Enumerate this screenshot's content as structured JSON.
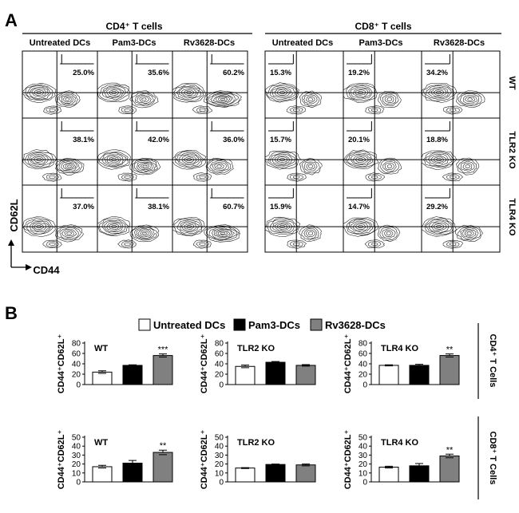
{
  "panel_a": {
    "label": "A",
    "groups": [
      {
        "title": "CD4⁺ T cells",
        "conditions": [
          "Untreated DCs",
          "Pam3-DCs",
          "Rv3628-DCs"
        ],
        "percents": [
          [
            "25.0%",
            "35.6%",
            "60.2%"
          ],
          [
            "38.1%",
            "42.0%",
            "36.0%"
          ],
          [
            "37.0%",
            "38.1%",
            "60.7%"
          ]
        ]
      },
      {
        "title": "CD8⁺ T cells",
        "conditions": [
          "Untreated DCs",
          "Pam3-DCs",
          "Rv3628-DCs"
        ],
        "percents": [
          [
            "15.3%",
            "19.2%",
            "34.2%"
          ],
          [
            "15.7%",
            "20.1%",
            "18.8%"
          ],
          [
            "15.9%",
            "14.7%",
            "29.2%"
          ]
        ]
      }
    ],
    "row_labels": [
      "WT",
      "TLR2 KO",
      "TLR4 KO"
    ],
    "y_axis_label": "CD62L",
    "x_axis_label": "CD44"
  },
  "panel_b": {
    "label": "B",
    "legend": [
      "Untreated DCs",
      "Pam3-DCs",
      "Rv3628-DCs"
    ],
    "row_labels": [
      "CD4⁺ T Cells",
      "CD8⁺ T Cells"
    ],
    "y_axis_label": "CD44⁺CD62L⁺"
  },
  "colors": {
    "untreated": "#ffffff",
    "pam3": "#000000",
    "rv3628": "#808080",
    "stroke": "#000000"
  },
  "chart_data": [
    {
      "type": "bar",
      "title": "WT",
      "cell_type": "CD4⁺ T Cells",
      "categories": [
        "Untreated DCs",
        "Pam3-DCs",
        "Rv3628-DCs"
      ],
      "values": [
        24,
        37,
        56
      ],
      "errors": [
        2.5,
        1,
        3
      ],
      "significance": [
        "",
        "",
        "***"
      ],
      "ylabel": "CD44⁺CD62L⁺",
      "ylim": [
        0,
        80
      ],
      "yticks": [
        0,
        20,
        40,
        60,
        80
      ]
    },
    {
      "type": "bar",
      "title": "TLR2 KO",
      "cell_type": "CD4⁺ T Cells",
      "categories": [
        "Untreated DCs",
        "Pam3-DCs",
        "Rv3628-DCs"
      ],
      "values": [
        35,
        43,
        37
      ],
      "errors": [
        2.5,
        1.5,
        1.5
      ],
      "significance": [
        "",
        "",
        ""
      ],
      "ylabel": "CD44⁺CD62L⁺",
      "ylim": [
        0,
        80
      ],
      "yticks": [
        0,
        20,
        40,
        60,
        80
      ]
    },
    {
      "type": "bar",
      "title": "TLR4 KO",
      "cell_type": "CD4⁺ T Cells",
      "categories": [
        "Untreated DCs",
        "Pam3-DCs",
        "Rv3628-DCs"
      ],
      "values": [
        37,
        37,
        56
      ],
      "errors": [
        1,
        2,
        3
      ],
      "significance": [
        "",
        "",
        "**"
      ],
      "ylabel": "CD44⁺CD62L⁺",
      "ylim": [
        0,
        80
      ],
      "yticks": [
        0,
        20,
        40,
        60,
        80
      ]
    },
    {
      "type": "bar",
      "title": "WT",
      "cell_type": "CD8⁺ T Cells",
      "categories": [
        "Untreated DCs",
        "Pam3-DCs",
        "Rv3628-DCs"
      ],
      "values": [
        17,
        21,
        33
      ],
      "errors": [
        1.5,
        3,
        2.5
      ],
      "significance": [
        "",
        "",
        "**"
      ],
      "ylabel": "CD44⁺CD62L⁺",
      "ylim": [
        0,
        50
      ],
      "yticks": [
        0,
        10,
        20,
        30,
        40,
        50
      ]
    },
    {
      "type": "bar",
      "title": "TLR2 KO",
      "cell_type": "CD8⁺ T Cells",
      "categories": [
        "Untreated DCs",
        "Pam3-DCs",
        "Rv3628-DCs"
      ],
      "values": [
        15.5,
        19.5,
        19
      ],
      "errors": [
        0.5,
        0.5,
        1
      ],
      "significance": [
        "",
        "",
        ""
      ],
      "ylabel": "CD44⁺CD62L⁺",
      "ylim": [
        0,
        50
      ],
      "yticks": [
        0,
        10,
        20,
        30,
        40,
        50
      ]
    },
    {
      "type": "bar",
      "title": "TLR4 KO",
      "cell_type": "CD8⁺ T Cells",
      "categories": [
        "Untreated DCs",
        "Pam3-DCs",
        "Rv3628-DCs"
      ],
      "values": [
        16.5,
        18,
        29
      ],
      "errors": [
        1,
        2.5,
        2
      ],
      "significance": [
        "",
        "",
        "**"
      ],
      "ylabel": "CD44⁺CD62L⁺",
      "ylim": [
        0,
        50
      ],
      "yticks": [
        0,
        10,
        20,
        30,
        40,
        50
      ]
    }
  ]
}
